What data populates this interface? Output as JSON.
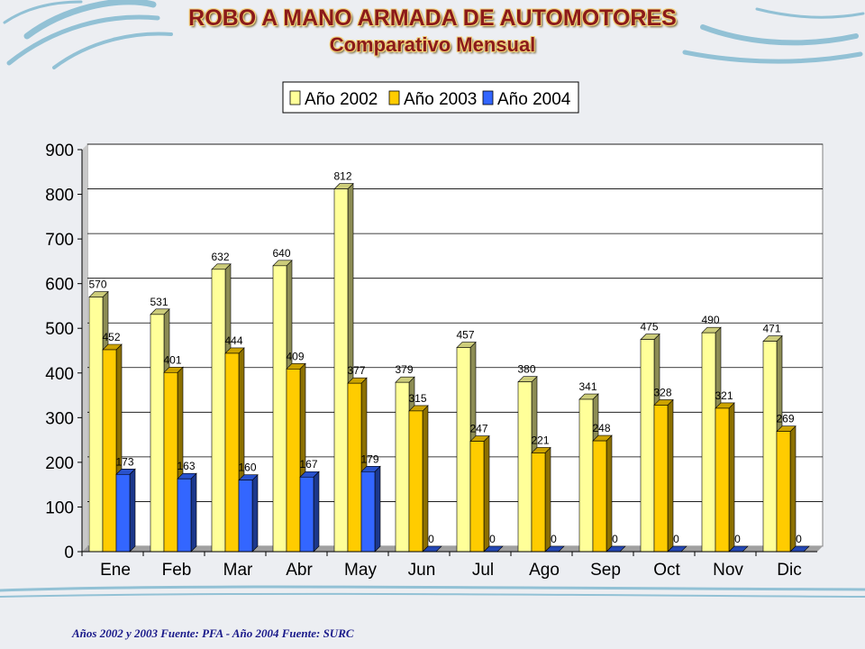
{
  "slide": {
    "title": "ROBO A MANO ARMADA DE AUTOMOTORES",
    "subtitle": "Comparativo Mensual",
    "footnote": "Años 2002 y 2003 Fuente: PFA - Año 2004 Fuente: SURC"
  },
  "chart_data": {
    "type": "bar",
    "categories": [
      "Ene",
      "Feb",
      "Mar",
      "Abr",
      "May",
      "Jun",
      "Jul",
      "Ago",
      "Sep",
      "Oct",
      "Nov",
      "Dic"
    ],
    "series": [
      {
        "name": "Año 2002",
        "color": "#ffff99",
        "values": [
          570,
          531,
          632,
          640,
          812,
          379,
          457,
          380,
          341,
          475,
          490,
          471
        ],
        "labels": [
          "570",
          "531",
          "632",
          "640",
          "812",
          "379",
          "457",
          "380",
          "341",
          "475",
          "490",
          "471"
        ]
      },
      {
        "name": "Año 2003",
        "color": "#ffcc00",
        "values": [
          452,
          401,
          444,
          409,
          377,
          315,
          247,
          221,
          248,
          328,
          321,
          269
        ],
        "labels": [
          "452",
          "401",
          "444",
          "409",
          "377",
          "315",
          "247",
          "221",
          "248",
          "328",
          "321",
          "269"
        ]
      },
      {
        "name": "Año 2004",
        "color": "#3366ff",
        "values": [
          173,
          163,
          160,
          167,
          179,
          0,
          0,
          0,
          0,
          0,
          0,
          0
        ],
        "labels": [
          "173",
          "163",
          "160",
          "167",
          "179",
          "0",
          "0",
          "0",
          "0",
          "0",
          "0",
          "0"
        ]
      }
    ],
    "yticks": [
      "0",
      "100",
      "200",
      "300",
      "400",
      "500",
      "600",
      "700",
      "800",
      "900"
    ],
    "ylim": [
      0,
      900
    ],
    "grid": true,
    "legend": "top-center"
  }
}
